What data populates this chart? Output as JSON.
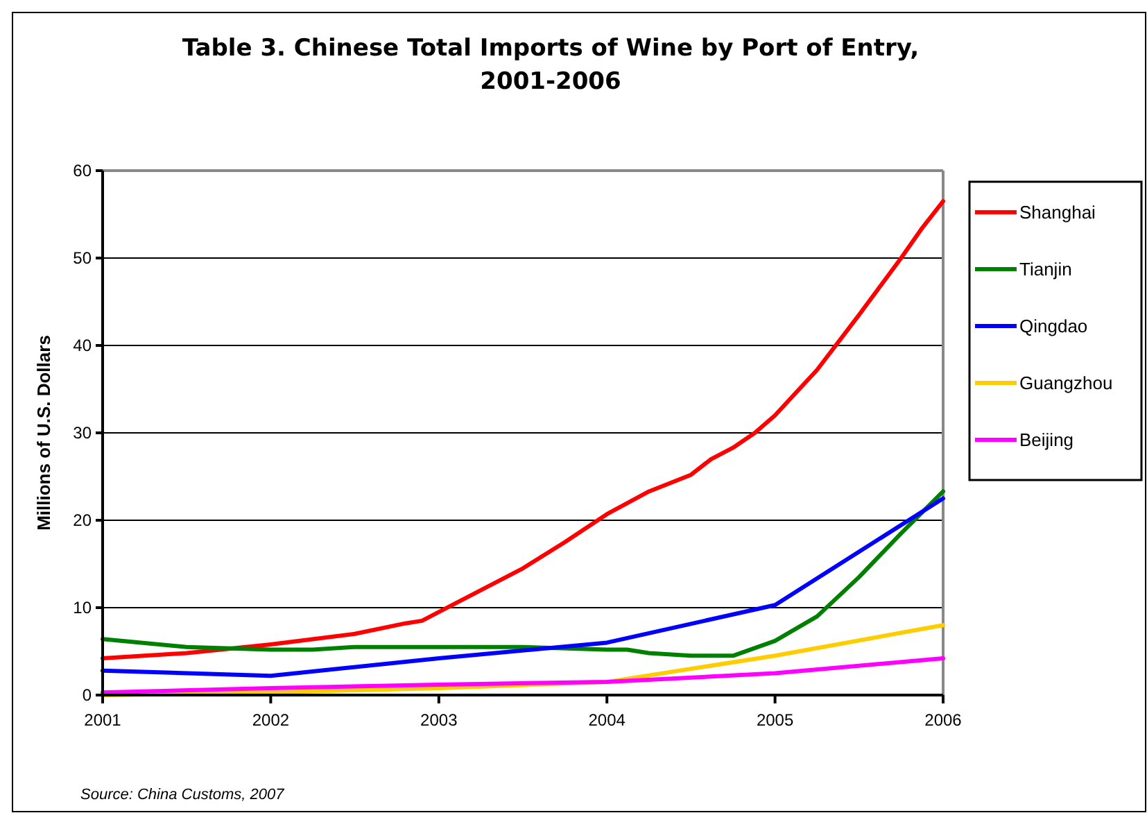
{
  "chart_data": {
    "type": "line",
    "title": "Table 3. Chinese Total Imports of Wine by Port of Entry, 2001-2006",
    "ylabel": "Millions of U.S. Dollars",
    "annotations": [
      "Source: China Customs, 2007"
    ],
    "xlim": [
      2001,
      2006
    ],
    "xticks": [
      2001,
      2002,
      2003,
      2004,
      2005,
      2006
    ],
    "ylim": [
      0,
      60
    ],
    "yticks": [
      0,
      10,
      20,
      30,
      40,
      50,
      60
    ],
    "grid": "y",
    "legend": "right",
    "marker": "none",
    "line_style": "solid",
    "series": [
      {
        "name": "Shanghai",
        "color": "#ff0000",
        "x": [
          2001,
          2001.5,
          2002,
          2002.5,
          2002.8,
          2002.9,
          2003.1,
          2003.5,
          2003.75,
          2004,
          2004.25,
          2004.5,
          2004.62,
          2004.75,
          2004.88,
          2005,
          2005.12,
          2005.25,
          2005.5,
          2005.75,
          2005.87,
          2006
        ],
        "values": [
          4.2,
          4.8,
          5.8,
          7,
          8.2,
          8.5,
          10.5,
          14.5,
          17.5,
          20.7,
          23.3,
          25.2,
          27,
          28.3,
          30,
          32,
          34.5,
          37.2,
          43.5,
          50,
          53.3,
          56.5
        ]
      },
      {
        "name": "Tianjin",
        "color": "#008000",
        "x": [
          2001,
          2001.5,
          2002,
          2002.25,
          2002.5,
          2003.5,
          2004,
          2004.12,
          2004.25,
          2004.5,
          2004.75,
          2005,
          2005.25,
          2005.5,
          2005.75,
          2006
        ],
        "values": [
          6.4,
          5.5,
          5.2,
          5.2,
          5.5,
          5.5,
          5.2,
          5.2,
          4.8,
          4.5,
          4.5,
          6.2,
          9,
          13.5,
          18.5,
          23.3
        ]
      },
      {
        "name": "Qingdao",
        "color": "#0000ff",
        "x": [
          2001,
          2002,
          2003,
          2004,
          2005,
          2006
        ],
        "values": [
          2.8,
          2.2,
          4.2,
          6,
          10.3,
          22.5
        ]
      },
      {
        "name": "Guangzhou",
        "color": "#ffcc00",
        "x": [
          2001,
          2002,
          2003,
          2004,
          2005,
          2006
        ],
        "values": [
          0,
          0.3,
          0.8,
          1.5,
          4.5,
          8
        ]
      },
      {
        "name": "Beijing",
        "color": "#ff00ff",
        "x": [
          2001,
          2002,
          2003,
          2004,
          2005,
          2006
        ],
        "values": [
          0.3,
          0.8,
          1.2,
          1.5,
          2.5,
          4.2
        ]
      }
    ]
  }
}
